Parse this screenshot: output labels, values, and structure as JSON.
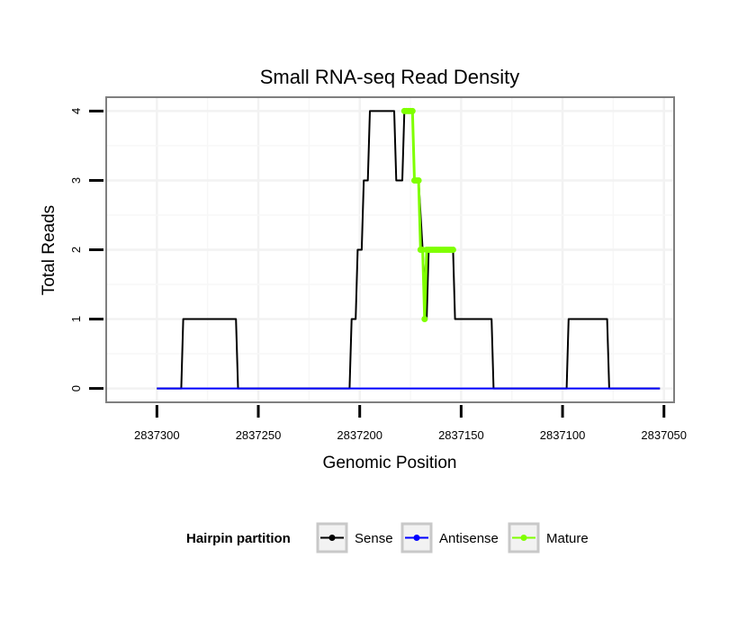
{
  "chart_data": {
    "type": "line",
    "title": "Small RNA-seq Read Density",
    "xlabel": "Genomic Position",
    "ylabel": "Total Reads",
    "xlim": [
      2837325,
      2837045
    ],
    "ylim": [
      -0.2,
      4.2
    ],
    "x_reversed": true,
    "x_ticks": [
      2837300,
      2837250,
      2837200,
      2837150,
      2837100,
      2837050
    ],
    "x_tick_labels": [
      "2837300",
      "2837250",
      "2837200",
      "2837150",
      "2837100",
      "2837050"
    ],
    "y_ticks": [
      0,
      1,
      2,
      3,
      4
    ],
    "y_tick_labels": [
      "0",
      "1",
      "2",
      "3",
      "4"
    ],
    "grid": true,
    "legend": {
      "title": "Hairpin partition",
      "position": "bottom",
      "entries": [
        "Sense",
        "Antisense",
        "Mature"
      ]
    },
    "series": [
      {
        "name": "Sense",
        "color": "#000000",
        "x": [
          2837300,
          2837288,
          2837287,
          2837261,
          2837260,
          2837205,
          2837204,
          2837202,
          2837201,
          2837199,
          2837198,
          2837196,
          2837195,
          2837193,
          2837192,
          2837183,
          2837182,
          2837179,
          2837178,
          2837177,
          2837176,
          2837174,
          2837173,
          2837172,
          2837171,
          2837167,
          2837166,
          2837165,
          2837164,
          2837163,
          2837162,
          2837154,
          2837153,
          2837135,
          2837134,
          2837098,
          2837097,
          2837078,
          2837077,
          2837052
        ],
        "y": [
          0,
          0,
          1,
          1,
          0,
          0,
          1,
          1,
          2,
          2,
          3,
          3,
          4,
          4,
          4,
          4,
          3,
          3,
          4,
          4,
          4,
          4,
          3,
          3,
          3,
          1,
          2,
          2,
          2,
          2,
          2,
          2,
          1,
          1,
          0,
          0,
          1,
          1,
          0,
          0
        ]
      },
      {
        "name": "Antisense",
        "color": "#0000ff",
        "x": [
          2837300,
          2837052
        ],
        "y": [
          0,
          0
        ]
      },
      {
        "name": "Mature",
        "color": "#7fff00",
        "x": [
          2837178,
          2837177,
          2837176,
          2837175,
          2837174,
          2837173,
          2837172,
          2837171,
          2837170,
          2837169,
          2837168,
          2837167,
          2837166,
          2837165,
          2837164,
          2837163,
          2837162,
          2837161,
          2837160,
          2837159,
          2837158,
          2837157,
          2837156,
          2837155,
          2837154
        ],
        "y": [
          4,
          4,
          4,
          4,
          4,
          3,
          3,
          3,
          2,
          2,
          1,
          2,
          2,
          2,
          2,
          2,
          2,
          2,
          2,
          2,
          2,
          2,
          2,
          2,
          2
        ]
      }
    ]
  }
}
